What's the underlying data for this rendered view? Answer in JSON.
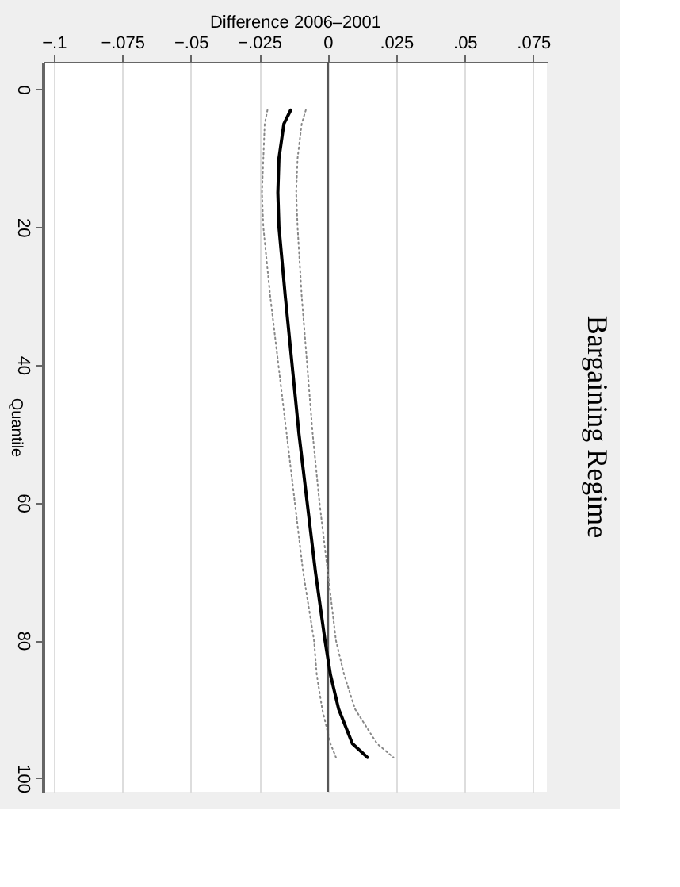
{
  "chart_data": {
    "type": "line",
    "title": "Bargaining Regime",
    "xlabel": "Difference 2006–2001",
    "ylabel": "Quantile",
    "orientation": "horizontal",
    "x": [
      3,
      5,
      10,
      15,
      20,
      30,
      40,
      50,
      60,
      70,
      80,
      85,
      90,
      95,
      97
    ],
    "series": [
      {
        "color": "#888888",
        "line_style": "dotted",
        "values": [
          -0.022,
          -0.023,
          -0.0235,
          -0.024,
          -0.0235,
          -0.021,
          -0.018,
          -0.015,
          -0.012,
          -0.009,
          -0.005,
          -0.004,
          -0.002,
          0.001,
          0.003
        ]
      },
      {
        "color": "#888888",
        "line_style": "dotted",
        "values": [
          -0.008,
          -0.0095,
          -0.011,
          -0.0115,
          -0.011,
          -0.0095,
          -0.0075,
          -0.0055,
          -0.003,
          0.0,
          0.003,
          0.006,
          0.01,
          0.018,
          0.024
        ]
      },
      {
        "color": "#000000",
        "line_style": "solid",
        "values": [
          -0.0135,
          -0.016,
          -0.0178,
          -0.0182,
          -0.0178,
          -0.0155,
          -0.013,
          -0.0105,
          -0.0075,
          -0.0045,
          -0.001,
          0.001,
          0.004,
          0.009,
          0.0145
        ]
      }
    ],
    "xlim": [
      -0.104,
      0.08
    ],
    "xticks": [
      {
        "value": -0.1,
        "label": "−.1"
      },
      {
        "value": -0.075,
        "label": "−.075"
      },
      {
        "value": -0.05,
        "label": "−.05"
      },
      {
        "value": -0.025,
        "label": "−.025"
      },
      0,
      {
        "value": 0.025,
        "label": ".025"
      },
      {
        "value": 0.05,
        "label": ".05"
      },
      {
        "value": 0.075,
        "label": ".075"
      }
    ],
    "ylim": [
      102,
      -4
    ],
    "yticks": [
      0,
      20,
      40,
      60,
      80,
      100
    ],
    "ref_lines": [
      {
        "axis": "x",
        "value": 0,
        "color": "#555555"
      }
    ],
    "grid": "x",
    "marker": "none"
  }
}
